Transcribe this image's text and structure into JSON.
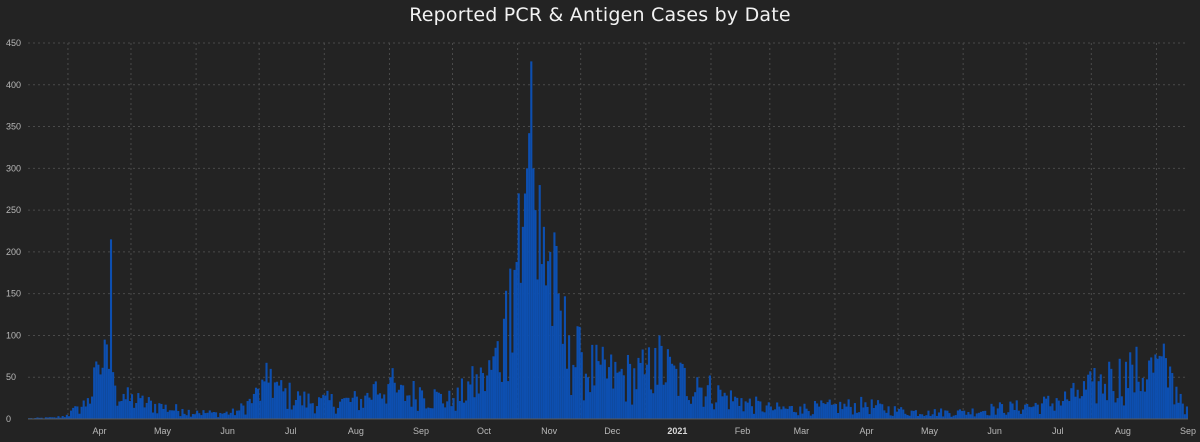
{
  "chart_data": {
    "type": "bar",
    "title": "Reported PCR & Antigen Cases by Date",
    "xlabel": "",
    "ylabel": "",
    "ylim": [
      0,
      450
    ],
    "yticks": [
      0,
      50,
      100,
      150,
      200,
      250,
      300,
      350,
      400,
      450
    ],
    "grid": true,
    "legend": "none",
    "x_start": "2020-03-13",
    "x_end": "2021-09-15",
    "x_tick_labels": [
      {
        "label": "Apr",
        "date": "2020-04-01"
      },
      {
        "label": "May",
        "date": "2020-05-01"
      },
      {
        "label": "Jun",
        "date": "2020-06-01"
      },
      {
        "label": "Jul",
        "date": "2020-07-01"
      },
      {
        "label": "Aug",
        "date": "2020-08-01"
      },
      {
        "label": "Sep",
        "date": "2020-09-01"
      },
      {
        "label": "Oct",
        "date": "2020-10-01"
      },
      {
        "label": "Nov",
        "date": "2020-11-01"
      },
      {
        "label": "Dec",
        "date": "2020-12-01"
      },
      {
        "label": "2021",
        "date": "2021-01-01",
        "bold": true
      },
      {
        "label": "Feb",
        "date": "2021-02-01"
      },
      {
        "label": "Mar",
        "date": "2021-03-01"
      },
      {
        "label": "Apr",
        "date": "2021-04-01"
      },
      {
        "label": "May",
        "date": "2021-05-01"
      },
      {
        "label": "Jun",
        "date": "2021-06-01"
      },
      {
        "label": "Jul",
        "date": "2021-07-01"
      },
      {
        "label": "Aug",
        "date": "2021-08-01"
      },
      {
        "label": "Sep",
        "date": "2021-09-01"
      }
    ],
    "series": [
      {
        "keypoints": [
          [
            "2020-03-13",
            1
          ],
          [
            "2020-03-25",
            2
          ],
          [
            "2020-03-31",
            5
          ],
          [
            "2020-04-05",
            15
          ],
          [
            "2020-04-10",
            25
          ],
          [
            "2020-04-15",
            65
          ],
          [
            "2020-04-18",
            95
          ],
          [
            "2020-04-20",
            60
          ],
          [
            "2020-04-21",
            215
          ],
          [
            "2020-04-23",
            40
          ],
          [
            "2020-04-27",
            30
          ],
          [
            "2020-05-05",
            25
          ],
          [
            "2020-05-15",
            18
          ],
          [
            "2020-05-25",
            12
          ],
          [
            "2020-06-01",
            10
          ],
          [
            "2020-06-10",
            8
          ],
          [
            "2020-06-20",
            10
          ],
          [
            "2020-06-28",
            30
          ],
          [
            "2020-07-03",
            45
          ],
          [
            "2020-07-06",
            60
          ],
          [
            "2020-07-10",
            40
          ],
          [
            "2020-07-20",
            28
          ],
          [
            "2020-07-30",
            25
          ],
          [
            "2020-08-10",
            25
          ],
          [
            "2020-08-20",
            28
          ],
          [
            "2020-08-25",
            45
          ],
          [
            "2020-09-01",
            50
          ],
          [
            "2020-09-05",
            35
          ],
          [
            "2020-09-15",
            38
          ],
          [
            "2020-09-25",
            30
          ],
          [
            "2020-10-01",
            25
          ],
          [
            "2020-10-08",
            45
          ],
          [
            "2020-10-15",
            55
          ],
          [
            "2020-10-20",
            75
          ],
          [
            "2020-10-25",
            120
          ],
          [
            "2020-10-28",
            180
          ],
          [
            "2020-11-01",
            270
          ],
          [
            "2020-11-03",
            230
          ],
          [
            "2020-11-05",
            300
          ],
          [
            "2020-11-07",
            428
          ],
          [
            "2020-11-09",
            250
          ],
          [
            "2020-11-11",
            280
          ],
          [
            "2020-11-13",
            230
          ],
          [
            "2020-11-16",
            200
          ],
          [
            "2020-11-20",
            150
          ],
          [
            "2020-11-25",
            100
          ],
          [
            "2020-12-01",
            80
          ],
          [
            "2020-12-10",
            65
          ],
          [
            "2020-12-20",
            60
          ],
          [
            "2021-01-01",
            65
          ],
          [
            "2021-01-05",
            85
          ],
          [
            "2021-01-15",
            60
          ],
          [
            "2021-01-25",
            50
          ],
          [
            "2021-02-05",
            35
          ],
          [
            "2021-02-15",
            25
          ],
          [
            "2021-03-01",
            15
          ],
          [
            "2021-03-15",
            15
          ],
          [
            "2021-04-01",
            18
          ],
          [
            "2021-04-15",
            20
          ],
          [
            "2021-05-01",
            12
          ],
          [
            "2021-05-15",
            10
          ],
          [
            "2021-06-01",
            10
          ],
          [
            "2021-06-15",
            15
          ],
          [
            "2021-07-01",
            18
          ],
          [
            "2021-07-15",
            25
          ],
          [
            "2021-07-25",
            35
          ],
          [
            "2021-08-01",
            45
          ],
          [
            "2021-08-10",
            60
          ],
          [
            "2021-08-20",
            65
          ],
          [
            "2021-08-28",
            70
          ],
          [
            "2021-09-03",
            75
          ],
          [
            "2021-09-08",
            55
          ],
          [
            "2021-09-12",
            30
          ],
          [
            "2021-09-15",
            15
          ]
        ]
      }
    ]
  }
}
